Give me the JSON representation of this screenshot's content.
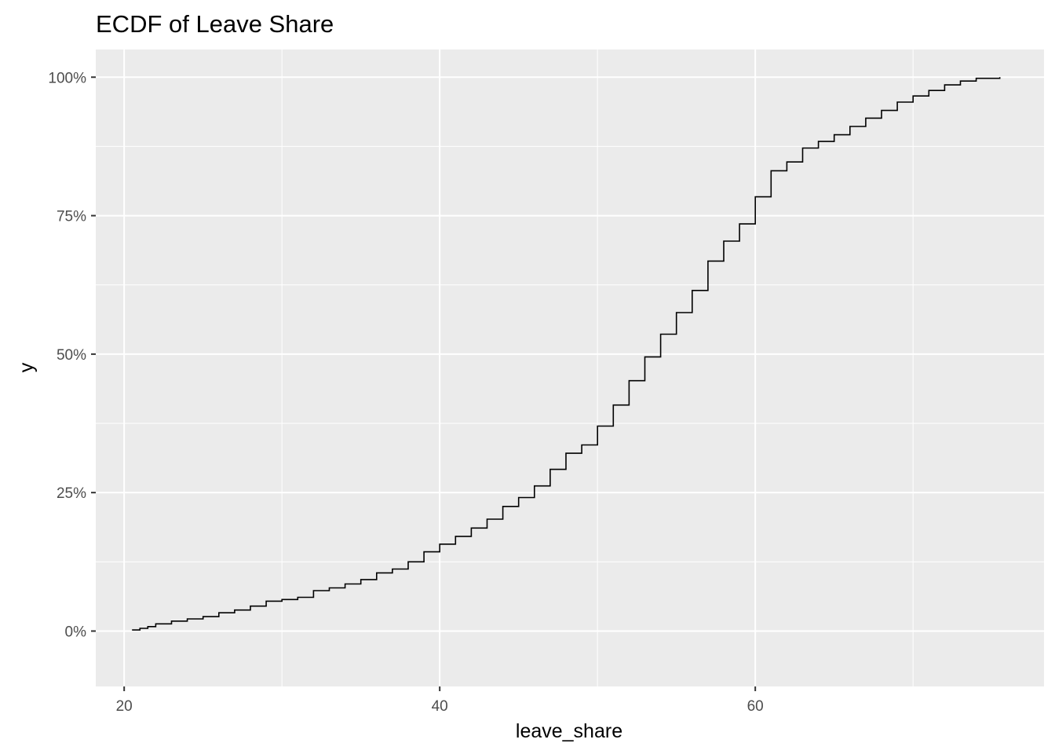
{
  "chart_data": {
    "type": "line",
    "subtype": "ecdf-step",
    "title": "ECDF of Leave Share",
    "xlabel": "leave_share",
    "ylabel": "y",
    "xlim": [
      18.2,
      78.3
    ],
    "ylim": [
      -0.1,
      1.05
    ],
    "x_ticks": [
      20,
      40,
      60
    ],
    "x_tick_labels": [
      "20",
      "40",
      "60"
    ],
    "x_minor_ticks": [
      30,
      50,
      70
    ],
    "y_ticks": [
      0,
      0.25,
      0.5,
      0.75,
      1.0
    ],
    "y_tick_labels": [
      "0%",
      "25%",
      "50%",
      "75%",
      "100%"
    ],
    "y_minor_ticks": [
      0.125,
      0.375,
      0.625,
      0.875
    ],
    "grid": true,
    "colors": {
      "panel_background": "#ebebeb",
      "grid_line": "#ffffff",
      "line": "#000000"
    },
    "series": [
      {
        "x": [
          20.5,
          21.0,
          21.5,
          22.0,
          23.0,
          24.0,
          25.0,
          26.0,
          27.0,
          28.0,
          29.0,
          30.0,
          31.0,
          32.0,
          33.0,
          34.0,
          35.0,
          36.0,
          37.0,
          38.0,
          39.0,
          40.0,
          41.0,
          42.0,
          43.0,
          44.0,
          45.0,
          46.0,
          47.0,
          48.0,
          49.0,
          50.0,
          51.0,
          52.0,
          53.0,
          54.0,
          55.0,
          56.0,
          57.0,
          58.0,
          59.0,
          60.0,
          61.0,
          62.0,
          63.0,
          64.0,
          65.0,
          66.0,
          67.0,
          68.0,
          69.0,
          70.0,
          71.0,
          72.0,
          73.0,
          74.0,
          75.5
        ],
        "y": [
          0.002,
          0.005,
          0.008,
          0.013,
          0.018,
          0.022,
          0.026,
          0.033,
          0.038,
          0.045,
          0.054,
          0.057,
          0.061,
          0.073,
          0.078,
          0.085,
          0.093,
          0.105,
          0.112,
          0.125,
          0.143,
          0.157,
          0.171,
          0.186,
          0.202,
          0.225,
          0.241,
          0.262,
          0.292,
          0.321,
          0.336,
          0.37,
          0.408,
          0.452,
          0.495,
          0.536,
          0.575,
          0.615,
          0.668,
          0.704,
          0.735,
          0.784,
          0.831,
          0.847,
          0.872,
          0.884,
          0.896,
          0.911,
          0.926,
          0.94,
          0.955,
          0.966,
          0.976,
          0.986,
          0.993,
          0.998,
          1.0
        ]
      }
    ]
  }
}
